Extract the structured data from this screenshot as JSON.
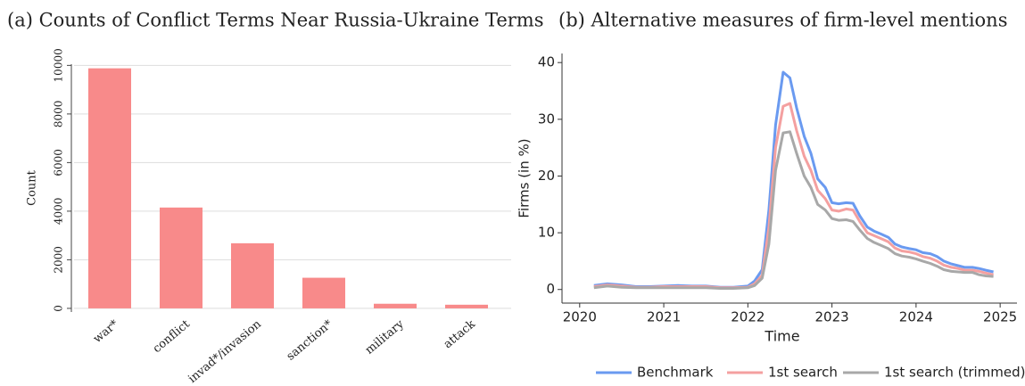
{
  "chart_data": [
    {
      "type": "bar",
      "title": "(a) Counts of Conflict Terms Near Russia-Ukraine Terms",
      "ylabel": "Count",
      "categories": [
        "war*",
        "conflict",
        "invad*/invasion",
        "sanction*",
        "military",
        "attack"
      ],
      "values": [
        9880,
        4150,
        2680,
        1260,
        190,
        150
      ],
      "color": "#f88a8a",
      "ylim": [
        -150,
        10050
      ],
      "yticks": [
        0,
        2000,
        4000,
        6000,
        8000,
        10000
      ],
      "grid": true
    },
    {
      "type": "line",
      "title": "(b) Alternative measures of firm-level mentions",
      "xlabel": "Time",
      "ylabel": "Firms (in %)",
      "x": [
        2020.17,
        2020.33,
        2020.5,
        2020.67,
        2020.83,
        2021,
        2021.17,
        2021.33,
        2021.5,
        2021.67,
        2021.83,
        2022,
        2022.08,
        2022.17,
        2022.25,
        2022.33,
        2022.42,
        2022.5,
        2022.58,
        2022.67,
        2022.75,
        2022.83,
        2022.92,
        2023,
        2023.08,
        2023.17,
        2023.25,
        2023.33,
        2023.42,
        2023.5,
        2023.58,
        2023.67,
        2023.75,
        2023.83,
        2023.92,
        2024,
        2024.08,
        2024.17,
        2024.25,
        2024.33,
        2024.42,
        2024.5,
        2024.58,
        2024.67,
        2024.75,
        2024.83,
        2024.92
      ],
      "series": [
        {
          "name": "Benchmark",
          "color": "#6a9af0",
          "values": [
            0.7,
            1.0,
            0.8,
            0.5,
            0.5,
            0.6,
            0.7,
            0.6,
            0.6,
            0.4,
            0.4,
            0.6,
            1.5,
            3.5,
            14,
            29,
            38.3,
            37.3,
            32,
            27,
            24,
            19.5,
            18,
            15.3,
            15.1,
            15.3,
            15.2,
            13,
            11,
            10.3,
            9.8,
            9.2,
            8,
            7.5,
            7.2,
            7,
            6.5,
            6.3,
            5.8,
            5,
            4.5,
            4.2,
            3.9,
            3.9,
            3.7,
            3.4,
            3.1
          ]
        },
        {
          "name": "1st search",
          "color": "#f4a0a0",
          "values": [
            0.5,
            0.8,
            0.6,
            0.4,
            0.4,
            0.5,
            0.5,
            0.5,
            0.5,
            0.3,
            0.3,
            0.4,
            1.0,
            2.5,
            11,
            25,
            32.3,
            32.8,
            28,
            23.5,
            21,
            17.5,
            16,
            14,
            13.8,
            14.2,
            14,
            12,
            10,
            9.5,
            9,
            8.4,
            7.3,
            6.8,
            6.6,
            6.3,
            5.8,
            5.5,
            5,
            4.3,
            3.9,
            3.7,
            3.4,
            3.4,
            3.2,
            2.9,
            2.6
          ]
        },
        {
          "name": "1st search (trimmed)",
          "color": "#a8a8a8",
          "values": [
            0.3,
            0.6,
            0.4,
            0.3,
            0.3,
            0.3,
            0.3,
            0.3,
            0.3,
            0.2,
            0.2,
            0.3,
            0.7,
            2,
            8,
            21,
            27.6,
            27.8,
            24,
            20,
            18,
            15,
            14,
            12.5,
            12.2,
            12.3,
            12,
            10.5,
            9,
            8.3,
            7.8,
            7.2,
            6.3,
            5.9,
            5.7,
            5.4,
            5,
            4.6,
            4.1,
            3.5,
            3.2,
            3.1,
            3,
            3,
            2.6,
            2.4,
            2.3
          ]
        }
      ],
      "xlim": [
        2019.79,
        2025.2
      ],
      "xticks": [
        2020,
        2021,
        2022,
        2023,
        2024,
        2025
      ],
      "ylim": [
        -2.4,
        41.6
      ],
      "yticks": [
        0,
        10,
        20,
        30,
        40
      ],
      "grid": false,
      "legend": "bottom"
    }
  ]
}
